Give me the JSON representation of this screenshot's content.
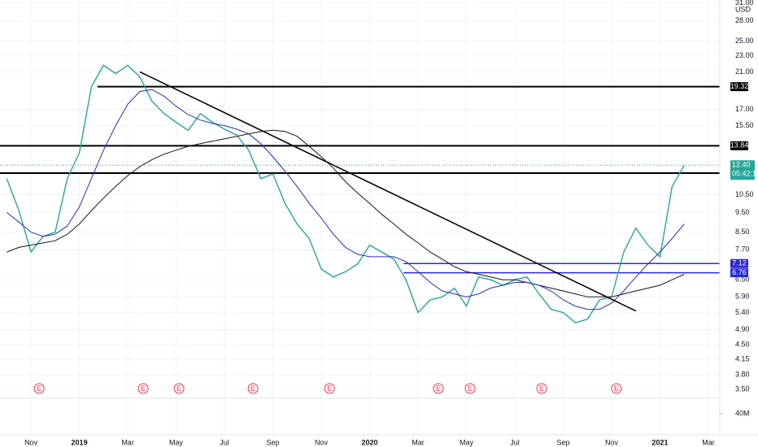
{
  "chart_data": {
    "type": "line",
    "currency": "USD",
    "log_scale": true,
    "grid": true,
    "ylim": [
      3.33,
      31.5
    ],
    "yticks": [
      {
        "value": 31,
        "label": "31.00"
      },
      {
        "value": 28,
        "label": "28.00"
      },
      {
        "value": 25,
        "label": "25.00"
      },
      {
        "value": 23,
        "label": "23.00"
      },
      {
        "value": 21,
        "label": "21.00"
      },
      {
        "value": 17,
        "label": "17.00"
      },
      {
        "value": 15.5,
        "label": "15.50"
      },
      {
        "value": 10.5,
        "label": "10.50"
      },
      {
        "value": 9.5,
        "label": "9.50"
      },
      {
        "value": 8.5,
        "label": "8.50"
      },
      {
        "value": 7.7,
        "label": "7.70"
      },
      {
        "value": 6.5,
        "label": "6.50"
      },
      {
        "value": 5.9,
        "label": "5.90"
      },
      {
        "value": 5.4,
        "label": "5.40"
      },
      {
        "value": 4.9,
        "label": "4.90"
      },
      {
        "value": 4.5,
        "label": "4.50"
      },
      {
        "value": 4.15,
        "label": "4.15"
      },
      {
        "value": 3.8,
        "label": "3.80"
      },
      {
        "value": 3.5,
        "label": "3.50"
      }
    ],
    "xlim": [
      -1.28,
      28.47
    ],
    "xticks": [
      {
        "value": 0,
        "label": "Nov"
      },
      {
        "value": 2,
        "label": "2019"
      },
      {
        "value": 4,
        "label": "Mar"
      },
      {
        "value": 6,
        "label": "May"
      },
      {
        "value": 8,
        "label": "Jul"
      },
      {
        "value": 10,
        "label": "Sep"
      },
      {
        "value": 12,
        "label": "Nov"
      },
      {
        "value": 14,
        "label": "2020"
      },
      {
        "value": 16,
        "label": "Mar"
      },
      {
        "value": 18,
        "label": "May"
      },
      {
        "value": 20,
        "label": "Jul"
      },
      {
        "value": 22,
        "label": "Sep"
      },
      {
        "value": 24,
        "label": "Nov"
      },
      {
        "value": 26,
        "label": "2021"
      },
      {
        "value": 28,
        "label": "Mar"
      }
    ],
    "x": [
      -1,
      -0.5,
      0,
      0.5,
      1,
      1.5,
      2,
      2.5,
      3,
      3.5,
      4,
      4.5,
      5,
      5.5,
      6,
      6.5,
      7,
      7.5,
      8,
      8.5,
      9,
      9.5,
      10,
      10.5,
      11,
      11.5,
      12,
      12.5,
      13,
      13.5,
      14,
      14.5,
      15,
      15.5,
      16,
      16.5,
      17,
      17.5,
      18,
      18.5,
      19,
      19.5,
      20,
      20.5,
      21,
      21.5,
      22,
      22.5,
      23,
      23.5,
      24,
      24.5,
      25,
      25.5,
      26,
      26.5,
      27
    ],
    "series": [
      {
        "color": "#26a69a",
        "values": [
          11.5,
          9.6,
          7.6,
          8.3,
          8.5,
          11.5,
          13.3,
          19.3,
          21.8,
          20.8,
          21.8,
          20.4,
          17.8,
          16.6,
          15.8,
          15.1,
          16.6,
          15.8,
          15.2,
          14.7,
          13.5,
          11.5,
          11.8,
          10.0,
          8.9,
          8.2,
          6.9,
          6.6,
          6.8,
          7.1,
          7.9,
          7.6,
          7.3,
          6.5,
          5.4,
          5.8,
          5.9,
          6.2,
          5.6,
          6.6,
          6.5,
          6.3,
          6.5,
          6.6,
          6.0,
          5.5,
          5.4,
          5.1,
          5.2,
          5.8,
          5.9,
          7.6,
          8.7,
          7.9,
          7.4,
          11.0,
          12.4
        ]
      },
      {
        "color": "#131722",
        "values": [
          7.6,
          7.8,
          7.9,
          8.0,
          8.1,
          8.4,
          8.9,
          9.6,
          10.3,
          11.0,
          11.7,
          12.3,
          12.8,
          13.2,
          13.5,
          13.8,
          14.0,
          14.2,
          14.4,
          14.6,
          14.8,
          15.0,
          15.1,
          15.0,
          14.6,
          13.8,
          13.0,
          12.2,
          11.3,
          10.6,
          10.0,
          9.4,
          8.9,
          8.4,
          8.0,
          7.6,
          7.3,
          7.0,
          6.8,
          6.7,
          6.6,
          6.5,
          6.5,
          6.4,
          6.3,
          6.2,
          6.1,
          6.0,
          5.9,
          5.9,
          5.9,
          6.0,
          6.1,
          6.2,
          6.3,
          6.5,
          6.7
        ]
      },
      {
        "color": "#2a2ebd",
        "values": [
          9.5,
          9.0,
          8.5,
          8.3,
          8.4,
          8.8,
          9.8,
          11.5,
          13.5,
          15.5,
          17.5,
          18.8,
          19.0,
          18.3,
          17.3,
          16.5,
          16.0,
          15.7,
          15.5,
          15.2,
          14.8,
          14.0,
          13.0,
          12.0,
          11.0,
          10.0,
          9.2,
          8.4,
          7.8,
          7.5,
          7.4,
          7.4,
          7.4,
          7.2,
          6.8,
          6.4,
          6.1,
          6.0,
          5.9,
          6.0,
          6.2,
          6.3,
          6.4,
          6.4,
          6.3,
          6.1,
          5.8,
          5.6,
          5.5,
          5.5,
          5.7,
          6.1,
          6.6,
          7.1,
          7.6,
          8.2,
          8.9
        ]
      }
    ],
    "trendline": {
      "x": [
        4.5,
        25
      ],
      "values": [
        21,
        5.45
      ],
      "color": "#000000"
    },
    "levels": {
      "values": [
        19.32,
        13.84,
        11.86,
        7.12,
        6.76
      ],
      "start_x": [
        2.75,
        -1.28,
        -1.28,
        15.4,
        15.4
      ],
      "colors": [
        "#000000",
        "#000000",
        "#000000",
        "#2929d6",
        "#2929d6"
      ]
    },
    "last": {
      "value": 12.4,
      "label": "12.40",
      "countdown": "05:42:12",
      "color": "#26a69a"
    },
    "earnings": {
      "label": "E",
      "x": [
        0.34,
        4.64,
        6.12,
        9.18,
        12.34,
        16.84,
        18.15,
        21.11,
        24.2
      ]
    },
    "volume_ticks": [
      {
        "value": 40000000,
        "label": "40M"
      }
    ]
  }
}
